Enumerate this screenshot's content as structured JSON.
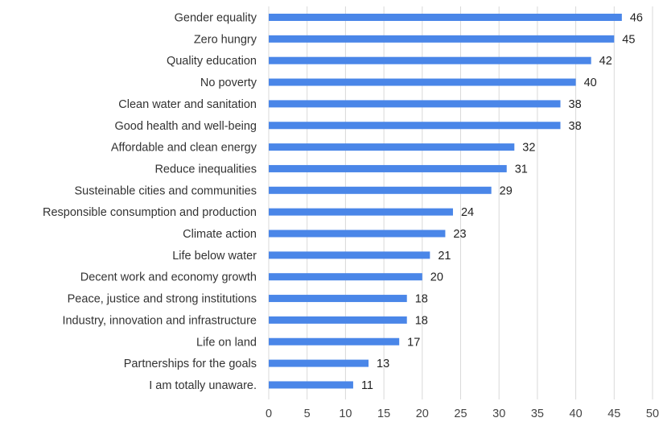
{
  "chart_data": {
    "type": "bar",
    "orientation": "horizontal",
    "categories": [
      "Gender equality",
      "Zero hungry",
      "Quality education",
      "No poverty",
      "Clean water and sanitation",
      "Good health and well-being ",
      "Affordable and clean energy",
      "Reduce inequalities",
      "Susteinable cities and communities",
      "Responsible consumption and production",
      "Climate action",
      "Life below water",
      "Decent work and economy growth ",
      "Peace, justice and strong institutions ",
      "Industry, innovation and infrastructure",
      "Life on land",
      "Partnerships for the goals",
      "I am totally unaware."
    ],
    "values": [
      46,
      45,
      42,
      40,
      38,
      38,
      32,
      31,
      29,
      24,
      23,
      21,
      20,
      18,
      18,
      17,
      13,
      11
    ],
    "title": "",
    "xlabel": "",
    "ylabel": "",
    "xlim": [
      0,
      50
    ],
    "xticks": [
      0,
      5,
      10,
      15,
      20,
      25,
      30,
      35,
      40,
      45,
      50
    ],
    "grid": "vertical",
    "legend": "none",
    "data_labels": true,
    "colors": {
      "bar": "#4a86e8",
      "grid": "#d9d9d9",
      "text": "#333333"
    }
  }
}
